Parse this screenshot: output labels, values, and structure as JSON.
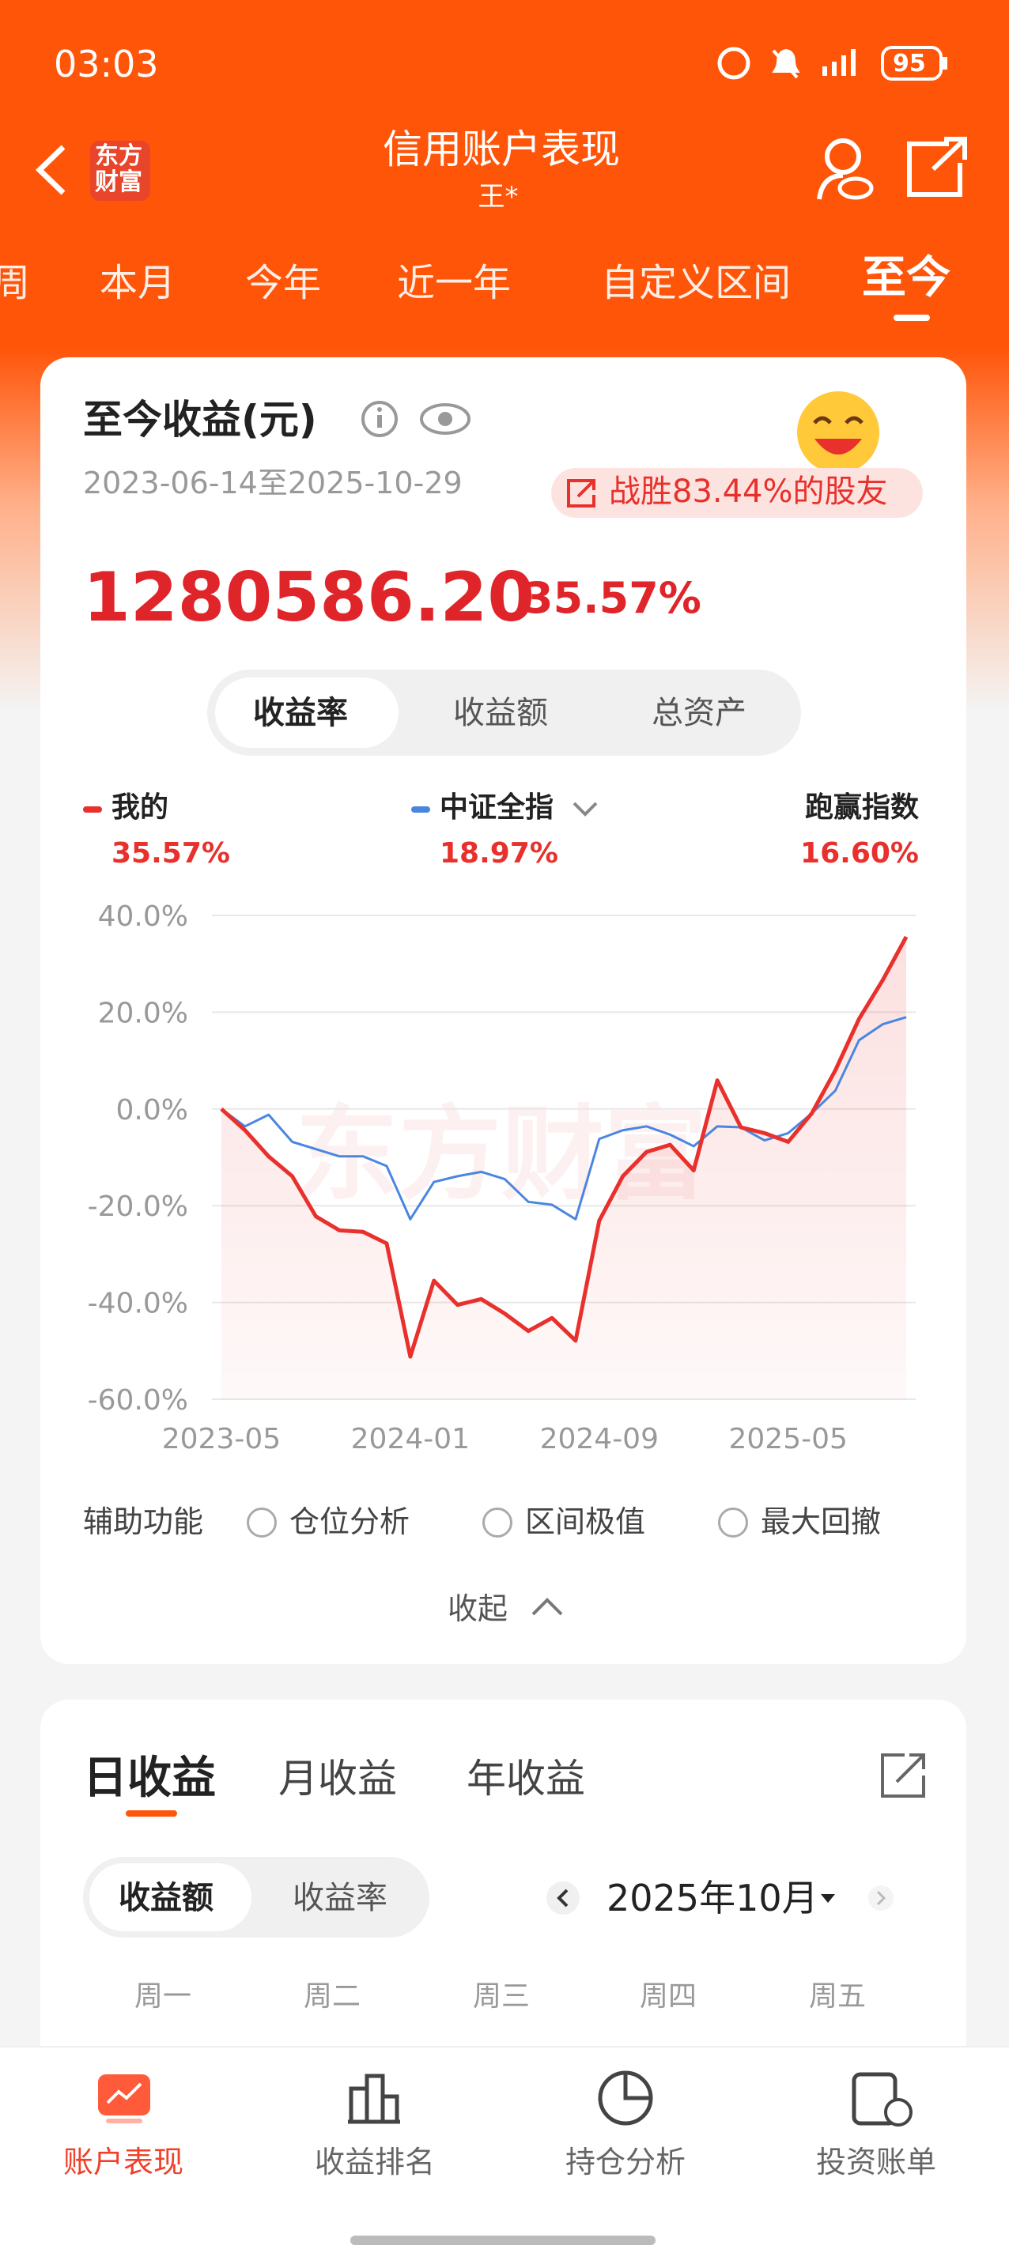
{
  "status_bar": {
    "time": "03:03",
    "battery": "95"
  },
  "header": {
    "logo": [
      "东方",
      "财富"
    ],
    "title": "信用账户表现",
    "subtitle": "王*"
  },
  "tabs": [
    "周",
    "本月",
    "今年",
    "近一年",
    "自定义区间",
    "至今"
  ],
  "summary": {
    "title": "至今收益(元)",
    "date_range": "2023-06-14至2025-10-29",
    "badge": "战胜83.44%的股友",
    "amount": "1280586.20",
    "rate": "35.57%",
    "toggle": [
      "收益率",
      "收益额",
      "总资产"
    ],
    "legend_values": [
      "35.57%",
      "18.97%"
    ],
    "outperform_label": "跑赢指数",
    "outperform_value": "16.60%"
  },
  "chart_data": {
    "type": "line",
    "watermark": "东方财富",
    "x": [
      0,
      1,
      2,
      3,
      4,
      5,
      6,
      7,
      8,
      9,
      10,
      11,
      12,
      13,
      14,
      15,
      16,
      17,
      18,
      19,
      20,
      21,
      22,
      23,
      24,
      25,
      26,
      27,
      28,
      29
    ],
    "xlim": [
      -0.4,
      29.4
    ],
    "xticks": [
      {
        "value": 0,
        "label": "2023-05"
      },
      {
        "value": 8,
        "label": "2024-01"
      },
      {
        "value": 16,
        "label": "2024-09"
      },
      {
        "value": 24,
        "label": "2025-05"
      }
    ],
    "ylim": [
      -60,
      40
    ],
    "yticks": [
      {
        "value": -60,
        "label": "-60.0%"
      },
      {
        "value": -40,
        "label": "-40.0%"
      },
      {
        "value": -20,
        "label": "-20.0%"
      },
      {
        "value": 0,
        "label": "0.0%"
      },
      {
        "value": 20,
        "label": "20.0%"
      },
      {
        "value": 40,
        "label": "40.0%"
      }
    ],
    "grid": true,
    "series": [
      {
        "name": "我的",
        "color": "#e8302c",
        "values": [
          0,
          -4.4,
          -9.8,
          -13.9,
          -22.2,
          -25.1,
          -25.4,
          -27.8,
          -51.2,
          -35.5,
          -40.5,
          -39.3,
          -42.3,
          -45.9,
          -43.2,
          -47.9,
          -23.1,
          -13.9,
          -8.9,
          -7.4,
          -12.7,
          5.9,
          -3.8,
          -5.0,
          -6.8,
          -0.9,
          8.0,
          18.6,
          26.6,
          35.57
        ]
      },
      {
        "name": "中证全指",
        "color": "#4a86e0",
        "values": [
          0,
          -3.6,
          -1.2,
          -6.8,
          -8.3,
          -9.8,
          -9.8,
          -11.8,
          -22.8,
          -15.1,
          -13.9,
          -13.0,
          -14.5,
          -19.2,
          -19.8,
          -22.8,
          -6.2,
          -4.4,
          -3.6,
          -5.3,
          -7.7,
          -3.6,
          -3.8,
          -6.5,
          -5.0,
          -0.9,
          3.8,
          14.2,
          17.5,
          18.97
        ]
      }
    ]
  },
  "aux": {
    "label": "辅助功能",
    "options": [
      "仓位分析",
      "区间极值",
      "最大回撤"
    ],
    "collapse": "收起"
  },
  "returns": {
    "tabs": [
      "日收益",
      "月收益",
      "年收益"
    ],
    "toggle": [
      "收益额",
      "收益率"
    ],
    "month": "2025年10月",
    "weekdays": [
      "周一",
      "周二",
      "周三",
      "周四",
      "周五"
    ]
  },
  "bottom_nav": [
    "账户表现",
    "收益排名",
    "持仓分析",
    "投资账单"
  ]
}
